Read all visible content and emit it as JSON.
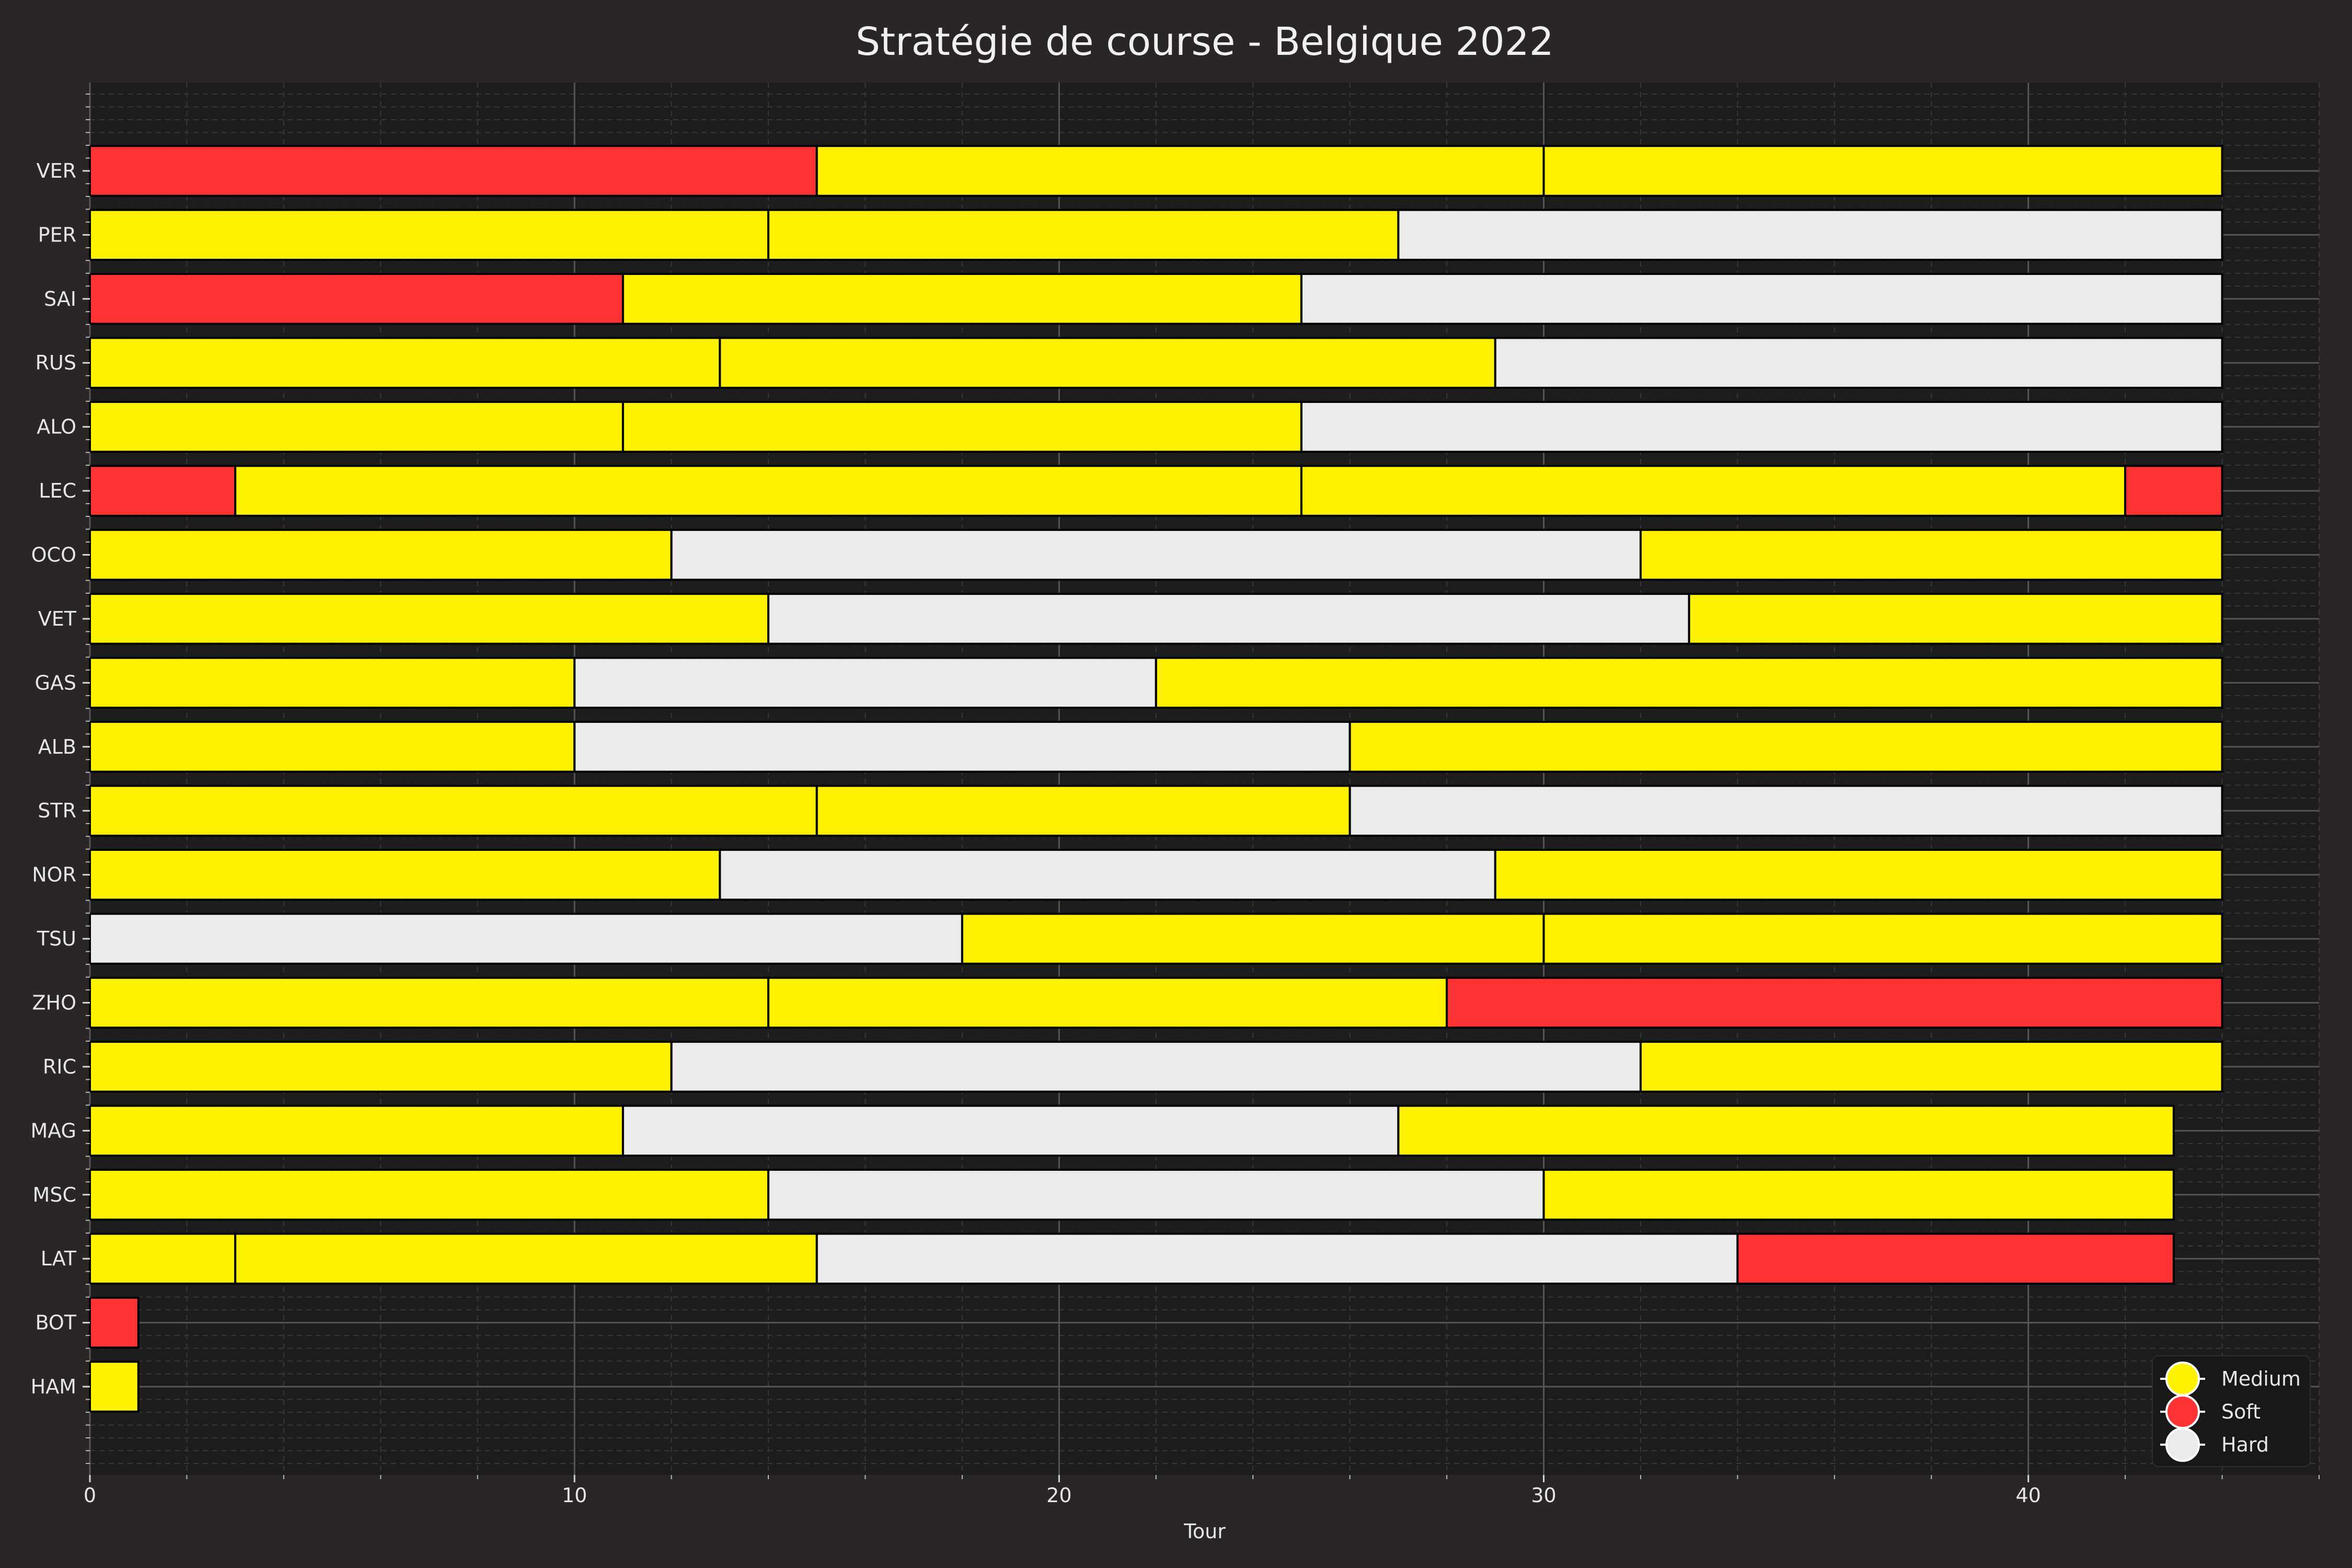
{
  "chart_data": {
    "type": "bar",
    "orientation": "horizontal",
    "stacked": true,
    "title": "Stratégie de course - Belgique 2022",
    "xlabel": "Tour",
    "xlim": [
      0,
      46
    ],
    "xticks": [
      0,
      10,
      20,
      30,
      40
    ],
    "grid": true,
    "legend_position": "bottom-right",
    "compounds": [
      {
        "name": "Medium",
        "color": "#FFF200"
      },
      {
        "name": "Soft",
        "color": "#FF3333"
      },
      {
        "name": "Hard",
        "color": "#EBEBEB"
      }
    ],
    "drivers": [
      {
        "driver": "VER",
        "stints": [
          {
            "compound": "Soft",
            "start": 0,
            "end": 15
          },
          {
            "compound": "Medium",
            "start": 15,
            "end": 30
          },
          {
            "compound": "Medium",
            "start": 30,
            "end": 44
          }
        ]
      },
      {
        "driver": "PER",
        "stints": [
          {
            "compound": "Medium",
            "start": 0,
            "end": 14
          },
          {
            "compound": "Medium",
            "start": 14,
            "end": 27
          },
          {
            "compound": "Hard",
            "start": 27,
            "end": 44
          }
        ]
      },
      {
        "driver": "SAI",
        "stints": [
          {
            "compound": "Soft",
            "start": 0,
            "end": 11
          },
          {
            "compound": "Medium",
            "start": 11,
            "end": 25
          },
          {
            "compound": "Hard",
            "start": 25,
            "end": 44
          }
        ]
      },
      {
        "driver": "RUS",
        "stints": [
          {
            "compound": "Medium",
            "start": 0,
            "end": 13
          },
          {
            "compound": "Medium",
            "start": 13,
            "end": 29
          },
          {
            "compound": "Hard",
            "start": 29,
            "end": 44
          }
        ]
      },
      {
        "driver": "ALO",
        "stints": [
          {
            "compound": "Medium",
            "start": 0,
            "end": 11
          },
          {
            "compound": "Medium",
            "start": 11,
            "end": 25
          },
          {
            "compound": "Hard",
            "start": 25,
            "end": 44
          }
        ]
      },
      {
        "driver": "LEC",
        "stints": [
          {
            "compound": "Soft",
            "start": 0,
            "end": 3
          },
          {
            "compound": "Medium",
            "start": 3,
            "end": 25
          },
          {
            "compound": "Medium",
            "start": 25,
            "end": 42
          },
          {
            "compound": "Soft",
            "start": 42,
            "end": 44
          }
        ]
      },
      {
        "driver": "OCO",
        "stints": [
          {
            "compound": "Medium",
            "start": 0,
            "end": 12
          },
          {
            "compound": "Hard",
            "start": 12,
            "end": 32
          },
          {
            "compound": "Medium",
            "start": 32,
            "end": 44
          }
        ]
      },
      {
        "driver": "VET",
        "stints": [
          {
            "compound": "Medium",
            "start": 0,
            "end": 14
          },
          {
            "compound": "Hard",
            "start": 14,
            "end": 33
          },
          {
            "compound": "Medium",
            "start": 33,
            "end": 44
          }
        ]
      },
      {
        "driver": "GAS",
        "stints": [
          {
            "compound": "Medium",
            "start": 0,
            "end": 10
          },
          {
            "compound": "Hard",
            "start": 10,
            "end": 22
          },
          {
            "compound": "Medium",
            "start": 22,
            "end": 44
          }
        ]
      },
      {
        "driver": "ALB",
        "stints": [
          {
            "compound": "Medium",
            "start": 0,
            "end": 10
          },
          {
            "compound": "Hard",
            "start": 10,
            "end": 26
          },
          {
            "compound": "Medium",
            "start": 26,
            "end": 44
          }
        ]
      },
      {
        "driver": "STR",
        "stints": [
          {
            "compound": "Medium",
            "start": 0,
            "end": 15
          },
          {
            "compound": "Medium",
            "start": 15,
            "end": 26
          },
          {
            "compound": "Hard",
            "start": 26,
            "end": 44
          }
        ]
      },
      {
        "driver": "NOR",
        "stints": [
          {
            "compound": "Medium",
            "start": 0,
            "end": 13
          },
          {
            "compound": "Hard",
            "start": 13,
            "end": 29
          },
          {
            "compound": "Medium",
            "start": 29,
            "end": 44
          }
        ]
      },
      {
        "driver": "TSU",
        "stints": [
          {
            "compound": "Hard",
            "start": 0,
            "end": 18
          },
          {
            "compound": "Medium",
            "start": 18,
            "end": 30
          },
          {
            "compound": "Medium",
            "start": 30,
            "end": 44
          }
        ]
      },
      {
        "driver": "ZHO",
        "stints": [
          {
            "compound": "Medium",
            "start": 0,
            "end": 14
          },
          {
            "compound": "Medium",
            "start": 14,
            "end": 28
          },
          {
            "compound": "Soft",
            "start": 28,
            "end": 44
          }
        ]
      },
      {
        "driver": "RIC",
        "stints": [
          {
            "compound": "Medium",
            "start": 0,
            "end": 12
          },
          {
            "compound": "Hard",
            "start": 12,
            "end": 32
          },
          {
            "compound": "Medium",
            "start": 32,
            "end": 44
          }
        ]
      },
      {
        "driver": "MAG",
        "stints": [
          {
            "compound": "Medium",
            "start": 0,
            "end": 11
          },
          {
            "compound": "Hard",
            "start": 11,
            "end": 27
          },
          {
            "compound": "Medium",
            "start": 27,
            "end": 43
          }
        ]
      },
      {
        "driver": "MSC",
        "stints": [
          {
            "compound": "Medium",
            "start": 0,
            "end": 14
          },
          {
            "compound": "Hard",
            "start": 14,
            "end": 30
          },
          {
            "compound": "Medium",
            "start": 30,
            "end": 43
          }
        ]
      },
      {
        "driver": "LAT",
        "stints": [
          {
            "compound": "Medium",
            "start": 0,
            "end": 3
          },
          {
            "compound": "Medium",
            "start": 3,
            "end": 15
          },
          {
            "compound": "Hard",
            "start": 15,
            "end": 34
          },
          {
            "compound": "Soft",
            "start": 34,
            "end": 43
          }
        ]
      },
      {
        "driver": "BOT",
        "stints": [
          {
            "compound": "Soft",
            "start": 0,
            "end": 1
          }
        ]
      },
      {
        "driver": "HAM",
        "stints": [
          {
            "compound": "Medium",
            "start": 0,
            "end": 1
          }
        ]
      }
    ]
  }
}
